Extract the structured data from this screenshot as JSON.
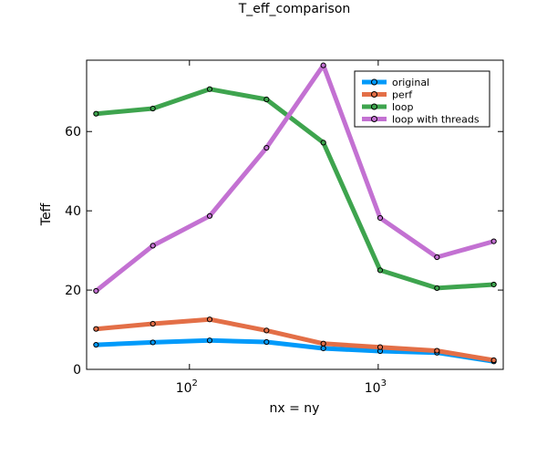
{
  "chart_data": {
    "type": "line",
    "title": "T_eff_comparison",
    "xlabel": "nx = ny",
    "ylabel": "Teff",
    "xscale": "log10",
    "xlim": [
      32,
      4096
    ],
    "ylim": [
      0,
      78
    ],
    "xticks": [
      {
        "value": 100,
        "base": "10",
        "exp": "2"
      },
      {
        "value": 1000,
        "base": "10",
        "exp": "3"
      }
    ],
    "yticks": [
      0,
      20,
      40,
      60
    ],
    "grid": false,
    "legend_position": "top-right",
    "x": [
      32,
      64,
      128,
      256,
      512,
      1024,
      2048,
      4096
    ],
    "series": [
      {
        "name": "original",
        "color": "#009AFA",
        "values": [
          6.2,
          6.8,
          7.3,
          6.9,
          5.3,
          4.6,
          4.2,
          2.0
        ]
      },
      {
        "name": "perf",
        "color": "#E36F47",
        "values": [
          10.2,
          11.5,
          12.6,
          9.8,
          6.5,
          5.6,
          4.7,
          2.3
        ]
      },
      {
        "name": "loop",
        "color": "#3EA44E",
        "values": [
          64.5,
          65.8,
          70.7,
          68.1,
          57.2,
          25.0,
          20.5,
          21.4
        ]
      },
      {
        "name": "loop with threads",
        "color": "#C371D2",
        "values": [
          19.8,
          31.2,
          38.7,
          55.9,
          76.7,
          38.2,
          28.3,
          32.3
        ]
      }
    ]
  }
}
